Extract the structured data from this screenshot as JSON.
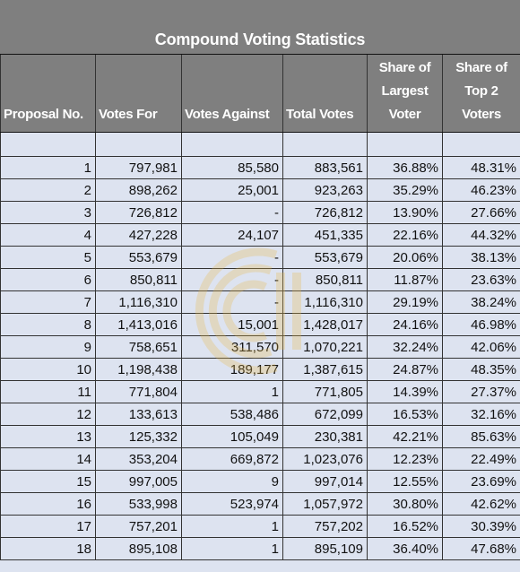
{
  "title": "Compound Voting Statistics",
  "columns": [
    "Proposal No.",
    "Votes For",
    "Votes Against",
    "Total Votes",
    "Share of Largest Voter",
    "Share of Top 2 Voters"
  ],
  "rows": [
    [
      "1",
      "797,981",
      "85,580",
      "883,561",
      "36.88%",
      "48.31%"
    ],
    [
      "2",
      "898,262",
      "25,001",
      "923,263",
      "35.29%",
      "46.23%"
    ],
    [
      "3",
      "726,812",
      "-",
      "726,812",
      "13.90%",
      "27.66%"
    ],
    [
      "4",
      "427,228",
      "24,107",
      "451,335",
      "22.16%",
      "44.32%"
    ],
    [
      "5",
      "553,679",
      "-",
      "553,679",
      "20.06%",
      "38.13%"
    ],
    [
      "6",
      "850,811",
      "-",
      "850,811",
      "11.87%",
      "23.63%"
    ],
    [
      "7",
      "1,116,310",
      "-",
      "1,116,310",
      "29.19%",
      "38.24%"
    ],
    [
      "8",
      "1,413,016",
      "15,001",
      "1,428,017",
      "24.16%",
      "46.98%"
    ],
    [
      "9",
      "758,651",
      "311,570",
      "1,070,221",
      "32.24%",
      "42.06%"
    ],
    [
      "10",
      "1,198,438",
      "189,177",
      "1,387,615",
      "24.87%",
      "48.35%"
    ],
    [
      "11",
      "771,804",
      "1",
      "771,805",
      "14.39%",
      "27.37%"
    ],
    [
      "12",
      "133,613",
      "538,486",
      "672,099",
      "16.53%",
      "32.16%"
    ],
    [
      "13",
      "125,332",
      "105,049",
      "230,381",
      "42.21%",
      "85.63%"
    ],
    [
      "14",
      "353,204",
      "669,872",
      "1,023,076",
      "12.23%",
      "22.49%"
    ],
    [
      "15",
      "997,005",
      "9",
      "997,014",
      "12.55%",
      "23.69%"
    ],
    [
      "16",
      "533,998",
      "523,974",
      "1,057,972",
      "30.80%",
      "42.62%"
    ],
    [
      "17",
      "757,201",
      "1",
      "757,202",
      "16.52%",
      "30.39%"
    ],
    [
      "18",
      "895,108",
      "1",
      "895,109",
      "36.40%",
      "47.68%"
    ]
  ],
  "colors": {
    "header_bg": "#7f7f7f",
    "cell_bg": "#dde3f0",
    "watermark": "#e8b94a"
  },
  "watermark_icon": "logo-watermark-icon"
}
